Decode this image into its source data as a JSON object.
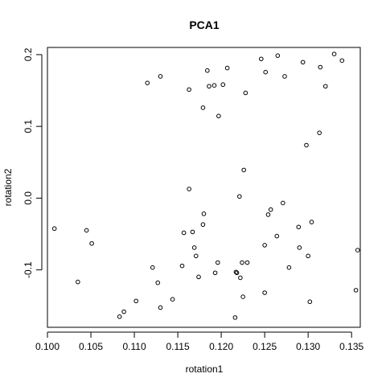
{
  "chart_data": {
    "type": "scatter",
    "title": "PCA1",
    "xlabel": "rotation1",
    "ylabel": "rotation2",
    "xlim": [
      0.1,
      0.136
    ],
    "ylim": [
      -0.18,
      0.21
    ],
    "xticks": [
      0.1,
      0.105,
      0.11,
      0.115,
      0.12,
      0.125,
      0.13,
      0.135
    ],
    "xtick_labels": [
      "0.100",
      "0.105",
      "0.110",
      "0.115",
      "0.120",
      "0.125",
      "0.130",
      "0.135"
    ],
    "yticks": [
      -0.1,
      0.0,
      0.1,
      0.2
    ],
    "ytick_labels": [
      "-0.1",
      "0.0",
      "0.1",
      "0.2"
    ],
    "grid": false,
    "legend": "none",
    "marker": "open-circle",
    "points": [
      [
        0.1008,
        -0.0424
      ],
      [
        0.1045,
        -0.0449
      ],
      [
        0.1051,
        -0.0632
      ],
      [
        0.1035,
        -0.1168
      ],
      [
        0.1083,
        -0.1652
      ],
      [
        0.1088,
        -0.1583
      ],
      [
        0.1102,
        -0.1433
      ],
      [
        0.1115,
        0.1605
      ],
      [
        0.113,
        0.1697
      ],
      [
        0.1121,
        -0.0967
      ],
      [
        0.1127,
        -0.1179
      ],
      [
        0.113,
        -0.1525
      ],
      [
        0.1144,
        -0.141
      ],
      [
        0.1155,
        -0.0944
      ],
      [
        0.1157,
        -0.0483
      ],
      [
        0.1163,
        0.0127
      ],
      [
        0.1163,
        0.1513
      ],
      [
        0.1167,
        -0.0471
      ],
      [
        0.1169,
        -0.069
      ],
      [
        0.1171,
        -0.0806
      ],
      [
        0.1174,
        -0.1098
      ],
      [
        0.1179,
        -0.0368
      ],
      [
        0.1179,
        0.126
      ],
      [
        0.118,
        -0.0218
      ],
      [
        0.1184,
        0.1778
      ],
      [
        0.1186,
        0.1559
      ],
      [
        0.1192,
        0.1571
      ],
      [
        0.1193,
        -0.1041
      ],
      [
        0.1196,
        -0.0898
      ],
      [
        0.1197,
        0.1144
      ],
      [
        0.1202,
        0.1582
      ],
      [
        0.1207,
        0.1813
      ],
      [
        0.1216,
        -0.1664
      ],
      [
        0.1217,
        -0.103
      ],
      [
        0.1218,
        -0.1041
      ],
      [
        0.1221,
        0.0024
      ],
      [
        0.1222,
        -0.111
      ],
      [
        0.1224,
        -0.0898
      ],
      [
        0.1225,
        -0.1375
      ],
      [
        0.1226,
        0.0392
      ],
      [
        0.1228,
        0.1467
      ],
      [
        0.123,
        -0.0898
      ],
      [
        0.1246,
        0.194
      ],
      [
        0.125,
        -0.0656
      ],
      [
        0.125,
        -0.1318
      ],
      [
        0.1251,
        0.1756
      ],
      [
        0.1254,
        -0.023
      ],
      [
        0.1257,
        -0.016
      ],
      [
        0.1264,
        -0.0529
      ],
      [
        0.1265,
        0.1986
      ],
      [
        0.1271,
        -0.0068
      ],
      [
        0.1273,
        0.1697
      ],
      [
        0.1278,
        -0.0967
      ],
      [
        0.1289,
        -0.0402
      ],
      [
        0.129,
        -0.069
      ],
      [
        0.1294,
        0.1894
      ],
      [
        0.1298,
        0.0738
      ],
      [
        0.13,
        -0.0806
      ],
      [
        0.1302,
        -0.1444
      ],
      [
        0.1304,
        -0.0333
      ],
      [
        0.1313,
        0.091
      ],
      [
        0.1314,
        0.1825
      ],
      [
        0.132,
        0.1559
      ],
      [
        0.133,
        0.2009
      ],
      [
        0.1339,
        0.1917
      ],
      [
        0.1355,
        -0.1283
      ],
      [
        0.1357,
        -0.0725
      ]
    ]
  }
}
